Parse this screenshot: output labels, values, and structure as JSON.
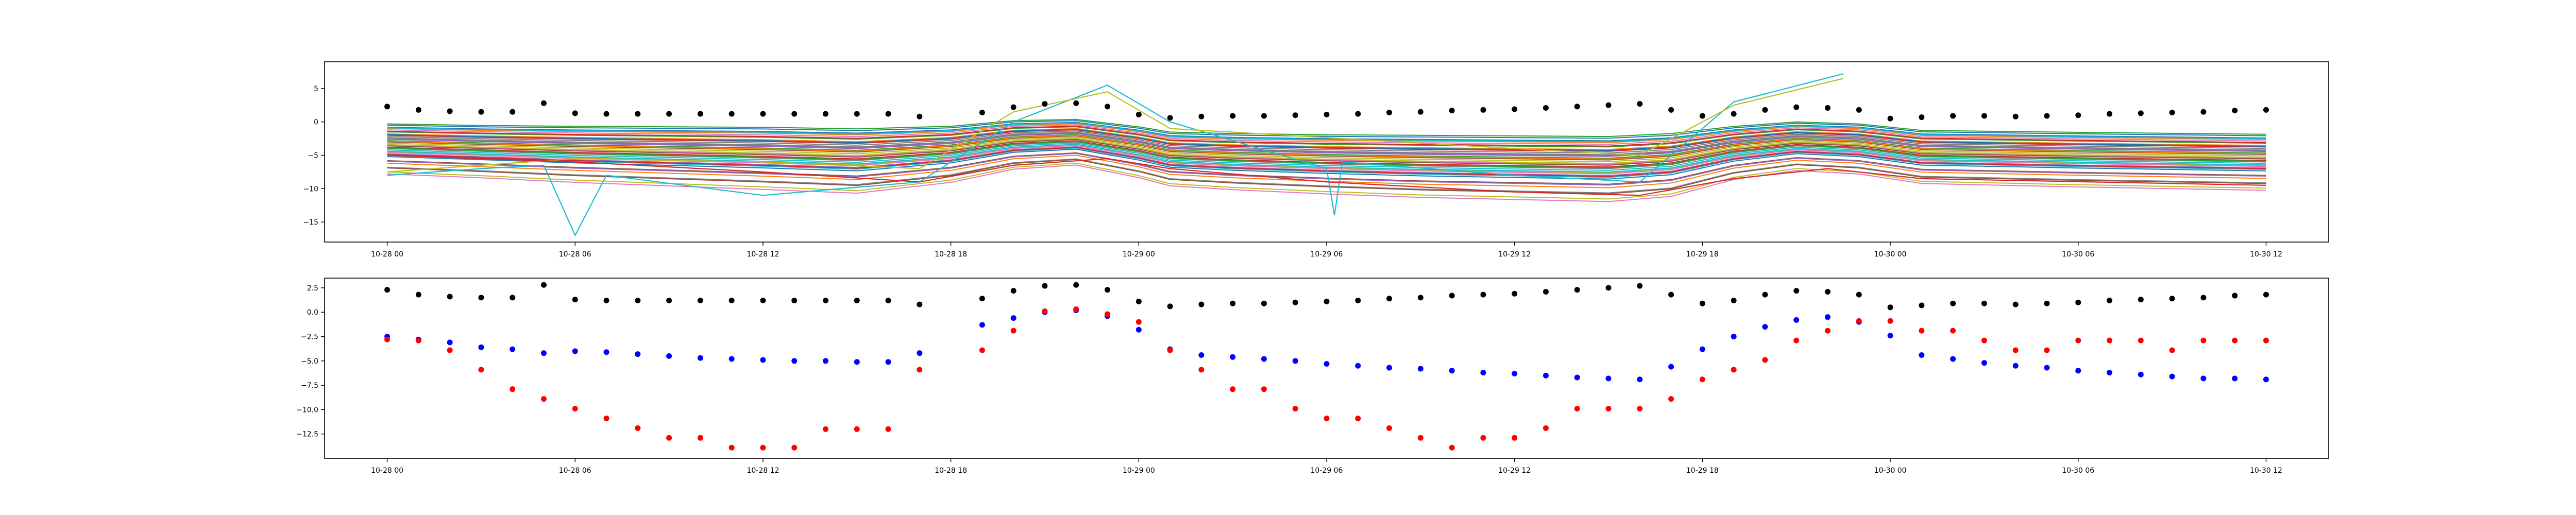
{
  "chart_data": [
    {
      "type": "line",
      "xlim": [
        "2023-10-27T22:00",
        "2023-10-30T14:00"
      ],
      "ylim": [
        -18,
        9
      ],
      "x_ticks": [
        {
          "t": "2023-10-28T00:00",
          "label": "10-28 00"
        },
        {
          "t": "2023-10-28T06:00",
          "label": "10-28 06"
        },
        {
          "t": "2023-10-28T12:00",
          "label": "10-28 12"
        },
        {
          "t": "2023-10-28T18:00",
          "label": "10-28 18"
        },
        {
          "t": "2023-10-29T00:00",
          "label": "10-29 00"
        },
        {
          "t": "2023-10-29T06:00",
          "label": "10-29 06"
        },
        {
          "t": "2023-10-29T12:00",
          "label": "10-29 12"
        },
        {
          "t": "2023-10-29T18:00",
          "label": "10-29 18"
        },
        {
          "t": "2023-10-30T00:00",
          "label": "10-30 00"
        },
        {
          "t": "2023-10-30T06:00",
          "label": "10-30 06"
        },
        {
          "t": "2023-10-30T12:00",
          "label": "10-30 12"
        }
      ],
      "y_ticks": [
        {
          "v": 5,
          "label": "5"
        },
        {
          "v": 0,
          "label": "0"
        },
        {
          "v": -5,
          "label": "−5"
        },
        {
          "v": -10,
          "label": "−10"
        },
        {
          "v": -15,
          "label": "−15"
        }
      ],
      "grid": false,
      "legend": "none",
      "line_count": 40,
      "line_profile": {
        "x": [
          "2023-10-28T00:00",
          "2023-10-28T03:00",
          "2023-10-28T06:00",
          "2023-10-28T09:00",
          "2023-10-28T12:00",
          "2023-10-28T15:00",
          "2023-10-28T18:00",
          "2023-10-28T20:00",
          "2023-10-28T22:00",
          "2023-10-29T00:00",
          "2023-10-29T01:00",
          "2023-10-29T03:00",
          "2023-10-29T06:00",
          "2023-10-29T09:00",
          "2023-10-29T12:00",
          "2023-10-29T15:00",
          "2023-10-29T17:00",
          "2023-10-29T19:00",
          "2023-10-29T21:00",
          "2023-10-29T23:00",
          "2023-10-30T01:00",
          "2023-10-30T06:00",
          "2023-10-30T12:00"
        ],
        "base": [
          0,
          -0.4,
          -0.8,
          -1.1,
          -1.4,
          -1.8,
          -0.8,
          0.6,
          1.0,
          -0.5,
          -1.5,
          -1.9,
          -2.3,
          -2.6,
          -2.8,
          -3.0,
          -2.4,
          -0.6,
          0.4,
          0.0,
          -1.2,
          -1.6,
          -2.0
        ],
        "amp": [
          0,
          0.3,
          0.8,
          1.2,
          1.6,
          1.9,
          0.8,
          -0.2,
          -0.6,
          0.1,
          0.5,
          0.8,
          1.2,
          1.6,
          1.8,
          2.0,
          1.7,
          0.4,
          -0.2,
          0.0,
          0.4,
          0.6,
          0.8
        ]
      },
      "line_offsets": [
        -0.5,
        -1,
        -1.5,
        -2,
        -2.5,
        -3,
        -3.5,
        -4,
        -4.5,
        -5,
        -0.8,
        -1.8,
        -2.8,
        -3.8,
        -4.8,
        -5.8,
        -1.2,
        -2.2,
        -3.2,
        -4.2,
        -5.2,
        -6.2,
        -0.3,
        -1.4,
        -2.6,
        -3.6,
        -4.6,
        -6.8,
        -7.5,
        -0.9,
        -1.9,
        -2.9,
        -3.9,
        -4.9,
        -5.9,
        -6.9,
        -7.8,
        -2.4,
        -3.4,
        -4.4
      ],
      "special_lines": [
        {
          "color": "#17becf",
          "x": [
            "2023-10-28T00:00",
            "2023-10-28T03:00",
            "2023-10-28T05:00",
            "2023-10-28T06:00",
            "2023-10-28T07:00",
            "2023-10-28T12:00",
            "2023-10-28T17:00",
            "2023-10-28T20:00",
            "2023-10-28T23:00",
            "2023-10-29T01:00",
            "2023-10-29T06:00",
            "2023-10-29T06:15",
            "2023-10-29T06:30",
            "2023-10-29T12:00",
            "2023-10-29T16:00",
            "2023-10-29T19:00",
            "2023-10-29T22:30"
          ],
          "y": [
            -8,
            -7,
            -6.5,
            -17,
            -8,
            -11,
            -9,
            0,
            5.5,
            0,
            -7,
            -14,
            -6,
            -8,
            -9,
            3,
            7.2
          ]
        },
        {
          "color": "#bcbd22",
          "x": [
            "2023-10-28T00:00",
            "2023-10-28T03:00",
            "2023-10-28T06:00",
            "2023-10-28T12:00",
            "2023-10-28T17:00",
            "2023-10-28T20:00",
            "2023-10-28T23:00",
            "2023-10-29T01:00",
            "2023-10-29T12:00",
            "2023-10-29T16:00",
            "2023-10-29T19:00",
            "2023-10-29T22:30"
          ],
          "y": [
            -7.5,
            -6.5,
            -5.5,
            -6,
            -7,
            1.5,
            4.5,
            -1,
            -4,
            -5,
            2.5,
            6.5
          ]
        },
        {
          "color": "#d62728",
          "x": [
            "2023-10-28T00:00",
            "2023-10-28T06:00",
            "2023-10-28T12:00",
            "2023-10-28T17:00",
            "2023-10-28T20:00",
            "2023-10-28T23:00",
            "2023-10-29T01:00",
            "2023-10-29T06:00",
            "2023-10-29T12:00",
            "2023-10-29T16:00",
            "2023-10-29T19:00",
            "2023-10-29T22:00",
            "2023-10-30T01:00",
            "2023-10-30T12:00"
          ],
          "y": [
            -5,
            -6,
            -7.5,
            -9,
            -6.5,
            -5.5,
            -7,
            -9,
            -10.5,
            -11,
            -8.5,
            -7,
            -8.5,
            -9.5
          ]
        }
      ],
      "black_points": {
        "x": [
          "2023-10-28T00:00",
          "2023-10-28T01:00",
          "2023-10-28T02:00",
          "2023-10-28T03:00",
          "2023-10-28T04:00",
          "2023-10-28T05:00",
          "2023-10-28T06:00",
          "2023-10-28T07:00",
          "2023-10-28T08:00",
          "2023-10-28T09:00",
          "2023-10-28T10:00",
          "2023-10-28T11:00",
          "2023-10-28T12:00",
          "2023-10-28T13:00",
          "2023-10-28T14:00",
          "2023-10-28T15:00",
          "2023-10-28T16:00",
          "2023-10-28T17:00",
          "2023-10-28T19:00",
          "2023-10-28T20:00",
          "2023-10-28T21:00",
          "2023-10-28T22:00",
          "2023-10-28T23:00",
          "2023-10-29T00:00",
          "2023-10-29T01:00",
          "2023-10-29T02:00",
          "2023-10-29T03:00",
          "2023-10-29T04:00",
          "2023-10-29T05:00",
          "2023-10-29T06:00",
          "2023-10-29T07:00",
          "2023-10-29T08:00",
          "2023-10-29T09:00",
          "2023-10-29T10:00",
          "2023-10-29T11:00",
          "2023-10-29T12:00",
          "2023-10-29T13:00",
          "2023-10-29T14:00",
          "2023-10-29T15:00",
          "2023-10-29T16:00",
          "2023-10-29T17:00",
          "2023-10-29T18:00",
          "2023-10-29T19:00",
          "2023-10-29T20:00",
          "2023-10-29T21:00",
          "2023-10-29T22:00",
          "2023-10-29T23:00",
          "2023-10-30T00:00",
          "2023-10-30T01:00",
          "2023-10-30T02:00",
          "2023-10-30T03:00",
          "2023-10-30T04:00",
          "2023-10-30T05:00",
          "2023-10-30T06:00",
          "2023-10-30T07:00",
          "2023-10-30T08:00",
          "2023-10-30T09:00",
          "2023-10-30T10:00",
          "2023-10-30T11:00",
          "2023-10-30T12:00"
        ],
        "y": [
          2.3,
          1.8,
          1.6,
          1.5,
          1.5,
          2.8,
          1.3,
          1.2,
          1.2,
          1.2,
          1.2,
          1.2,
          1.2,
          1.2,
          1.2,
          1.2,
          1.2,
          0.8,
          1.4,
          2.2,
          2.7,
          2.8,
          2.3,
          1.1,
          0.6,
          0.8,
          0.9,
          0.9,
          1.0,
          1.1,
          1.2,
          1.4,
          1.5,
          1.7,
          1.8,
          1.9,
          2.1,
          2.3,
          2.5,
          2.7,
          1.8,
          0.9,
          1.2,
          1.8,
          2.2,
          2.1,
          1.8,
          0.5,
          0.7,
          0.9,
          0.9,
          0.8,
          0.9,
          1.0,
          1.2,
          1.3,
          1.4,
          1.5,
          1.7,
          1.8
        ]
      }
    },
    {
      "type": "scatter",
      "xlim": [
        "2023-10-27T22:00",
        "2023-10-30T14:00"
      ],
      "ylim": [
        -15,
        3.5
      ],
      "x_ticks": [
        {
          "t": "2023-10-28T00:00",
          "label": "10-28 00"
        },
        {
          "t": "2023-10-28T06:00",
          "label": "10-28 06"
        },
        {
          "t": "2023-10-28T12:00",
          "label": "10-28 12"
        },
        {
          "t": "2023-10-28T18:00",
          "label": "10-28 18"
        },
        {
          "t": "2023-10-29T00:00",
          "label": "10-29 00"
        },
        {
          "t": "2023-10-29T06:00",
          "label": "10-29 06"
        },
        {
          "t": "2023-10-29T12:00",
          "label": "10-29 12"
        },
        {
          "t": "2023-10-29T18:00",
          "label": "10-29 18"
        },
        {
          "t": "2023-10-30T00:00",
          "label": "10-30 00"
        },
        {
          "t": "2023-10-30T06:00",
          "label": "10-30 06"
        },
        {
          "t": "2023-10-30T12:00",
          "label": "10-30 12"
        }
      ],
      "y_ticks": [
        {
          "v": 2.5,
          "label": "2.5"
        },
        {
          "v": 0,
          "label": "0.0"
        },
        {
          "v": -2.5,
          "label": "−2.5"
        },
        {
          "v": -5,
          "label": "−5.0"
        },
        {
          "v": -7.5,
          "label": "−7.5"
        },
        {
          "v": -10,
          "label": "−10.0"
        },
        {
          "v": -12.5,
          "label": "−12.5"
        }
      ],
      "grid": false,
      "legend": "none",
      "series": [
        {
          "color": "#000000",
          "x": [
            "2023-10-28T00:00",
            "2023-10-28T01:00",
            "2023-10-28T02:00",
            "2023-10-28T03:00",
            "2023-10-28T04:00",
            "2023-10-28T05:00",
            "2023-10-28T06:00",
            "2023-10-28T07:00",
            "2023-10-28T08:00",
            "2023-10-28T09:00",
            "2023-10-28T10:00",
            "2023-10-28T11:00",
            "2023-10-28T12:00",
            "2023-10-28T13:00",
            "2023-10-28T14:00",
            "2023-10-28T15:00",
            "2023-10-28T16:00",
            "2023-10-28T17:00",
            "2023-10-28T19:00",
            "2023-10-28T20:00",
            "2023-10-28T21:00",
            "2023-10-28T22:00",
            "2023-10-28T23:00",
            "2023-10-29T00:00",
            "2023-10-29T01:00",
            "2023-10-29T02:00",
            "2023-10-29T03:00",
            "2023-10-29T04:00",
            "2023-10-29T05:00",
            "2023-10-29T06:00",
            "2023-10-29T07:00",
            "2023-10-29T08:00",
            "2023-10-29T09:00",
            "2023-10-29T10:00",
            "2023-10-29T11:00",
            "2023-10-29T12:00",
            "2023-10-29T13:00",
            "2023-10-29T14:00",
            "2023-10-29T15:00",
            "2023-10-29T16:00",
            "2023-10-29T17:00",
            "2023-10-29T18:00",
            "2023-10-29T19:00",
            "2023-10-29T20:00",
            "2023-10-29T21:00",
            "2023-10-29T22:00",
            "2023-10-29T23:00",
            "2023-10-30T00:00",
            "2023-10-30T01:00",
            "2023-10-30T02:00",
            "2023-10-30T03:00",
            "2023-10-30T04:00",
            "2023-10-30T05:00",
            "2023-10-30T06:00",
            "2023-10-30T07:00",
            "2023-10-30T08:00",
            "2023-10-30T09:00",
            "2023-10-30T10:00",
            "2023-10-30T11:00",
            "2023-10-30T12:00"
          ],
          "y": [
            2.3,
            1.8,
            1.6,
            1.5,
            1.5,
            2.8,
            1.3,
            1.2,
            1.2,
            1.2,
            1.2,
            1.2,
            1.2,
            1.2,
            1.2,
            1.2,
            1.2,
            0.8,
            1.4,
            2.2,
            2.7,
            2.8,
            2.3,
            1.1,
            0.6,
            0.8,
            0.9,
            0.9,
            1.0,
            1.1,
            1.2,
            1.4,
            1.5,
            1.7,
            1.8,
            1.9,
            2.1,
            2.3,
            2.5,
            2.7,
            1.8,
            0.9,
            1.2,
            1.8,
            2.2,
            2.1,
            1.8,
            0.5,
            0.7,
            0.9,
            0.9,
            0.8,
            0.9,
            1.0,
            1.2,
            1.3,
            1.4,
            1.5,
            1.7,
            1.8
          ]
        },
        {
          "color": "#0000ff",
          "x": [
            "2023-10-28T00:00",
            "2023-10-28T01:00",
            "2023-10-28T02:00",
            "2023-10-28T03:00",
            "2023-10-28T04:00",
            "2023-10-28T05:00",
            "2023-10-28T06:00",
            "2023-10-28T07:00",
            "2023-10-28T08:00",
            "2023-10-28T09:00",
            "2023-10-28T10:00",
            "2023-10-28T11:00",
            "2023-10-28T12:00",
            "2023-10-28T13:00",
            "2023-10-28T14:00",
            "2023-10-28T15:00",
            "2023-10-28T16:00",
            "2023-10-28T17:00",
            "2023-10-28T19:00",
            "2023-10-28T20:00",
            "2023-10-28T21:00",
            "2023-10-28T22:00",
            "2023-10-28T23:00",
            "2023-10-29T00:00",
            "2023-10-29T01:00",
            "2023-10-29T02:00",
            "2023-10-29T03:00",
            "2023-10-29T04:00",
            "2023-10-29T05:00",
            "2023-10-29T06:00",
            "2023-10-29T07:00",
            "2023-10-29T08:00",
            "2023-10-29T09:00",
            "2023-10-29T10:00",
            "2023-10-29T11:00",
            "2023-10-29T12:00",
            "2023-10-29T13:00",
            "2023-10-29T14:00",
            "2023-10-29T15:00",
            "2023-10-29T16:00",
            "2023-10-29T17:00",
            "2023-10-29T18:00",
            "2023-10-29T19:00",
            "2023-10-29T20:00",
            "2023-10-29T21:00",
            "2023-10-29T22:00",
            "2023-10-29T23:00",
            "2023-10-30T00:00",
            "2023-10-30T01:00",
            "2023-10-30T02:00",
            "2023-10-30T03:00",
            "2023-10-30T04:00",
            "2023-10-30T05:00",
            "2023-10-30T06:00",
            "2023-10-30T07:00",
            "2023-10-30T08:00",
            "2023-10-30T09:00",
            "2023-10-30T10:00",
            "2023-10-30T11:00",
            "2023-10-30T12:00"
          ],
          "y": [
            -2.5,
            -2.8,
            -3.1,
            -3.6,
            -3.8,
            -4.2,
            -4.0,
            -4.1,
            -4.3,
            -4.5,
            -4.7,
            -4.8,
            -4.9,
            -5.0,
            -5.0,
            -5.1,
            -5.1,
            -4.2,
            -1.3,
            -0.6,
            0.0,
            0.2,
            -0.4,
            -1.8,
            -3.8,
            -4.4,
            -4.6,
            -4.8,
            -5.0,
            -5.3,
            -5.5,
            -5.7,
            -5.8,
            -6.0,
            -6.2,
            -6.3,
            -6.5,
            -6.7,
            -6.8,
            -6.9,
            -5.6,
            -3.8,
            -2.5,
            -1.5,
            -0.8,
            -0.5,
            -1.0,
            -2.4,
            -4.4,
            -4.8,
            -5.2,
            -5.5,
            -5.7,
            -6.0,
            -6.2,
            -6.4,
            -6.6,
            -6.8,
            -6.8,
            -6.9
          ]
        },
        {
          "color": "#ff0000",
          "x": [
            "2023-10-28T00:00",
            "2023-10-28T01:00",
            "2023-10-28T02:00",
            "2023-10-28T03:00",
            "2023-10-28T04:00",
            "2023-10-28T05:00",
            "2023-10-28T06:00",
            "2023-10-28T07:00",
            "2023-10-28T08:00",
            "2023-10-28T09:00",
            "2023-10-28T10:00",
            "2023-10-28T11:00",
            "2023-10-28T12:00",
            "2023-10-28T13:00",
            "2023-10-28T14:00",
            "2023-10-28T15:00",
            "2023-10-28T16:00",
            "2023-10-28T17:00",
            "2023-10-28T19:00",
            "2023-10-28T20:00",
            "2023-10-28T21:00",
            "2023-10-28T22:00",
            "2023-10-28T23:00",
            "2023-10-29T00:00",
            "2023-10-29T01:00",
            "2023-10-29T02:00",
            "2023-10-29T03:00",
            "2023-10-29T04:00",
            "2023-10-29T05:00",
            "2023-10-29T06:00",
            "2023-10-29T07:00",
            "2023-10-29T08:00",
            "2023-10-29T09:00",
            "2023-10-29T10:00",
            "2023-10-29T11:00",
            "2023-10-29T12:00",
            "2023-10-29T13:00",
            "2023-10-29T14:00",
            "2023-10-29T15:00",
            "2023-10-29T16:00",
            "2023-10-29T17:00",
            "2023-10-29T18:00",
            "2023-10-29T19:00",
            "2023-10-29T20:00",
            "2023-10-29T21:00",
            "2023-10-29T22:00",
            "2023-10-29T23:00",
            "2023-10-30T00:00",
            "2023-10-30T01:00",
            "2023-10-30T02:00",
            "2023-10-30T03:00",
            "2023-10-30T04:00",
            "2023-10-30T05:00",
            "2023-10-30T06:00",
            "2023-10-30T07:00",
            "2023-10-30T08:00",
            "2023-10-30T09:00",
            "2023-10-30T10:00",
            "2023-10-30T11:00",
            "2023-10-30T12:00"
          ],
          "y": [
            -2.8,
            -2.9,
            -3.9,
            -5.9,
            -7.9,
            -8.9,
            -9.9,
            -10.9,
            -11.9,
            -12.9,
            -12.9,
            -13.9,
            -13.9,
            -13.9,
            -12.0,
            -12.0,
            -12.0,
            -5.9,
            -3.9,
            -1.9,
            0.1,
            0.3,
            -0.2,
            -1.0,
            -3.9,
            -5.9,
            -7.9,
            -7.9,
            -9.9,
            -10.9,
            -10.9,
            -11.9,
            -12.9,
            -13.9,
            -12.9,
            -12.9,
            -11.9,
            -9.9,
            -9.9,
            -9.9,
            -8.9,
            -6.9,
            -5.9,
            -4.9,
            -2.9,
            -1.9,
            -0.9,
            -0.9,
            -1.9,
            -1.9,
            -2.9,
            -3.9,
            -3.9,
            -2.9,
            -2.9,
            -2.9,
            -3.9,
            -2.9,
            -2.9,
            -2.9
          ]
        }
      ]
    }
  ]
}
